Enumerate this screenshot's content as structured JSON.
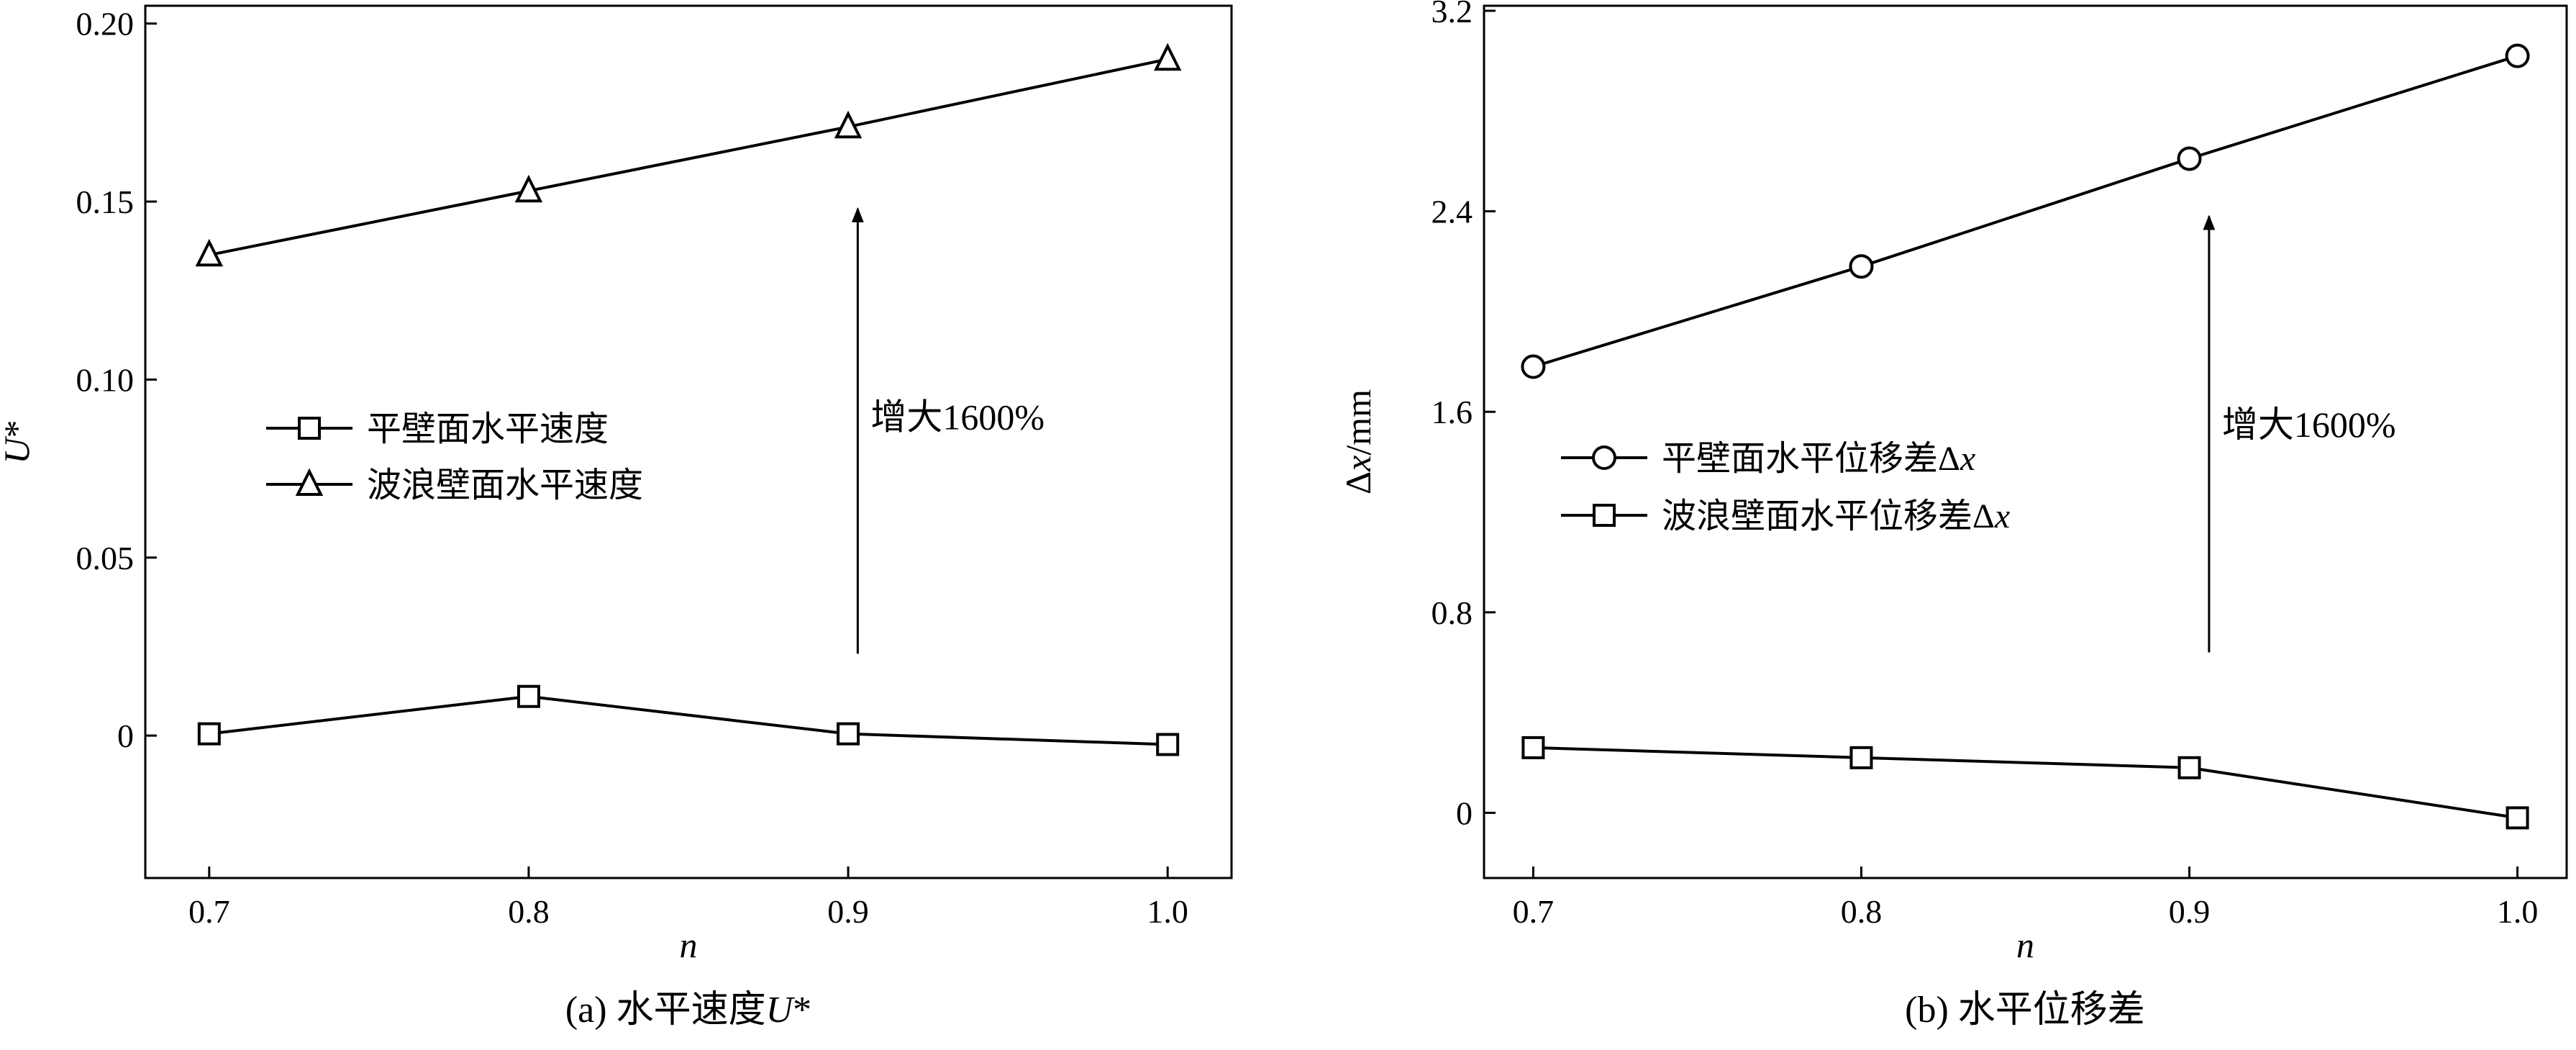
{
  "chart_data": [
    {
      "type": "line",
      "caption": "(a) 水平速度U*",
      "xlabel": "n",
      "ylabel": "U*",
      "xlim": [
        0.68,
        1.02
      ],
      "ylim": [
        -0.04,
        0.205
      ],
      "xticks": [
        0.7,
        0.8,
        0.9,
        1.0
      ],
      "xtick_labels": [
        "0.7",
        "0.8",
        "0.9",
        "1.0"
      ],
      "yticks": [
        0,
        0.05,
        0.1,
        0.15,
        0.2
      ],
      "ytick_labels": [
        "0",
        "0.05",
        "0.10",
        "0.15",
        "0.20"
      ],
      "legend_position": "center-left",
      "series": [
        {
          "name": "平壁面水平速度",
          "marker": "square",
          "x": [
            0.7,
            0.8,
            0.9,
            1.0
          ],
          "y": [
            0.0005,
            0.011,
            0.0005,
            -0.0025
          ]
        },
        {
          "name": "波浪壁面水平速度",
          "marker": "triangle",
          "x": [
            0.7,
            0.8,
            0.9,
            1.0
          ],
          "y": [
            0.135,
            0.153,
            0.171,
            0.19
          ]
        }
      ],
      "annotation": {
        "text": "增大1600%",
        "arrow_x": 0.903,
        "arrow_from_y": 0.023,
        "arrow_to_y": 0.148,
        "text_y": 0.086
      }
    },
    {
      "type": "line",
      "caption": "(b) 水平位移差",
      "xlabel": "n",
      "ylabel": "Δx/mm",
      "xlim": [
        0.685,
        1.015
      ],
      "ylim": [
        -0.26,
        3.22
      ],
      "xticks": [
        0.7,
        0.8,
        0.9,
        1.0
      ],
      "xtick_labels": [
        "0.7",
        "0.8",
        "0.9",
        "1.0"
      ],
      "yticks": [
        0,
        0.8,
        1.6,
        2.4,
        3.2
      ],
      "ytick_labels": [
        "0",
        "0.8",
        "1.6",
        "2.4",
        "3.2"
      ],
      "legend_position": "center-left",
      "series": [
        {
          "name": "平壁面水平位移差Δx",
          "marker": "circle",
          "x": [
            0.7,
            0.8,
            0.9,
            1.0
          ],
          "y": [
            1.78,
            2.18,
            2.61,
            3.02
          ]
        },
        {
          "name": "波浪壁面水平位移差Δx",
          "marker": "square",
          "x": [
            0.7,
            0.8,
            0.9,
            1.0
          ],
          "y": [
            0.26,
            0.22,
            0.18,
            -0.02
          ]
        }
      ],
      "annotation": {
        "text": "增大1600%",
        "arrow_x": 0.906,
        "arrow_from_y": 0.64,
        "arrow_to_y": 2.38,
        "text_y": 1.5
      }
    }
  ]
}
